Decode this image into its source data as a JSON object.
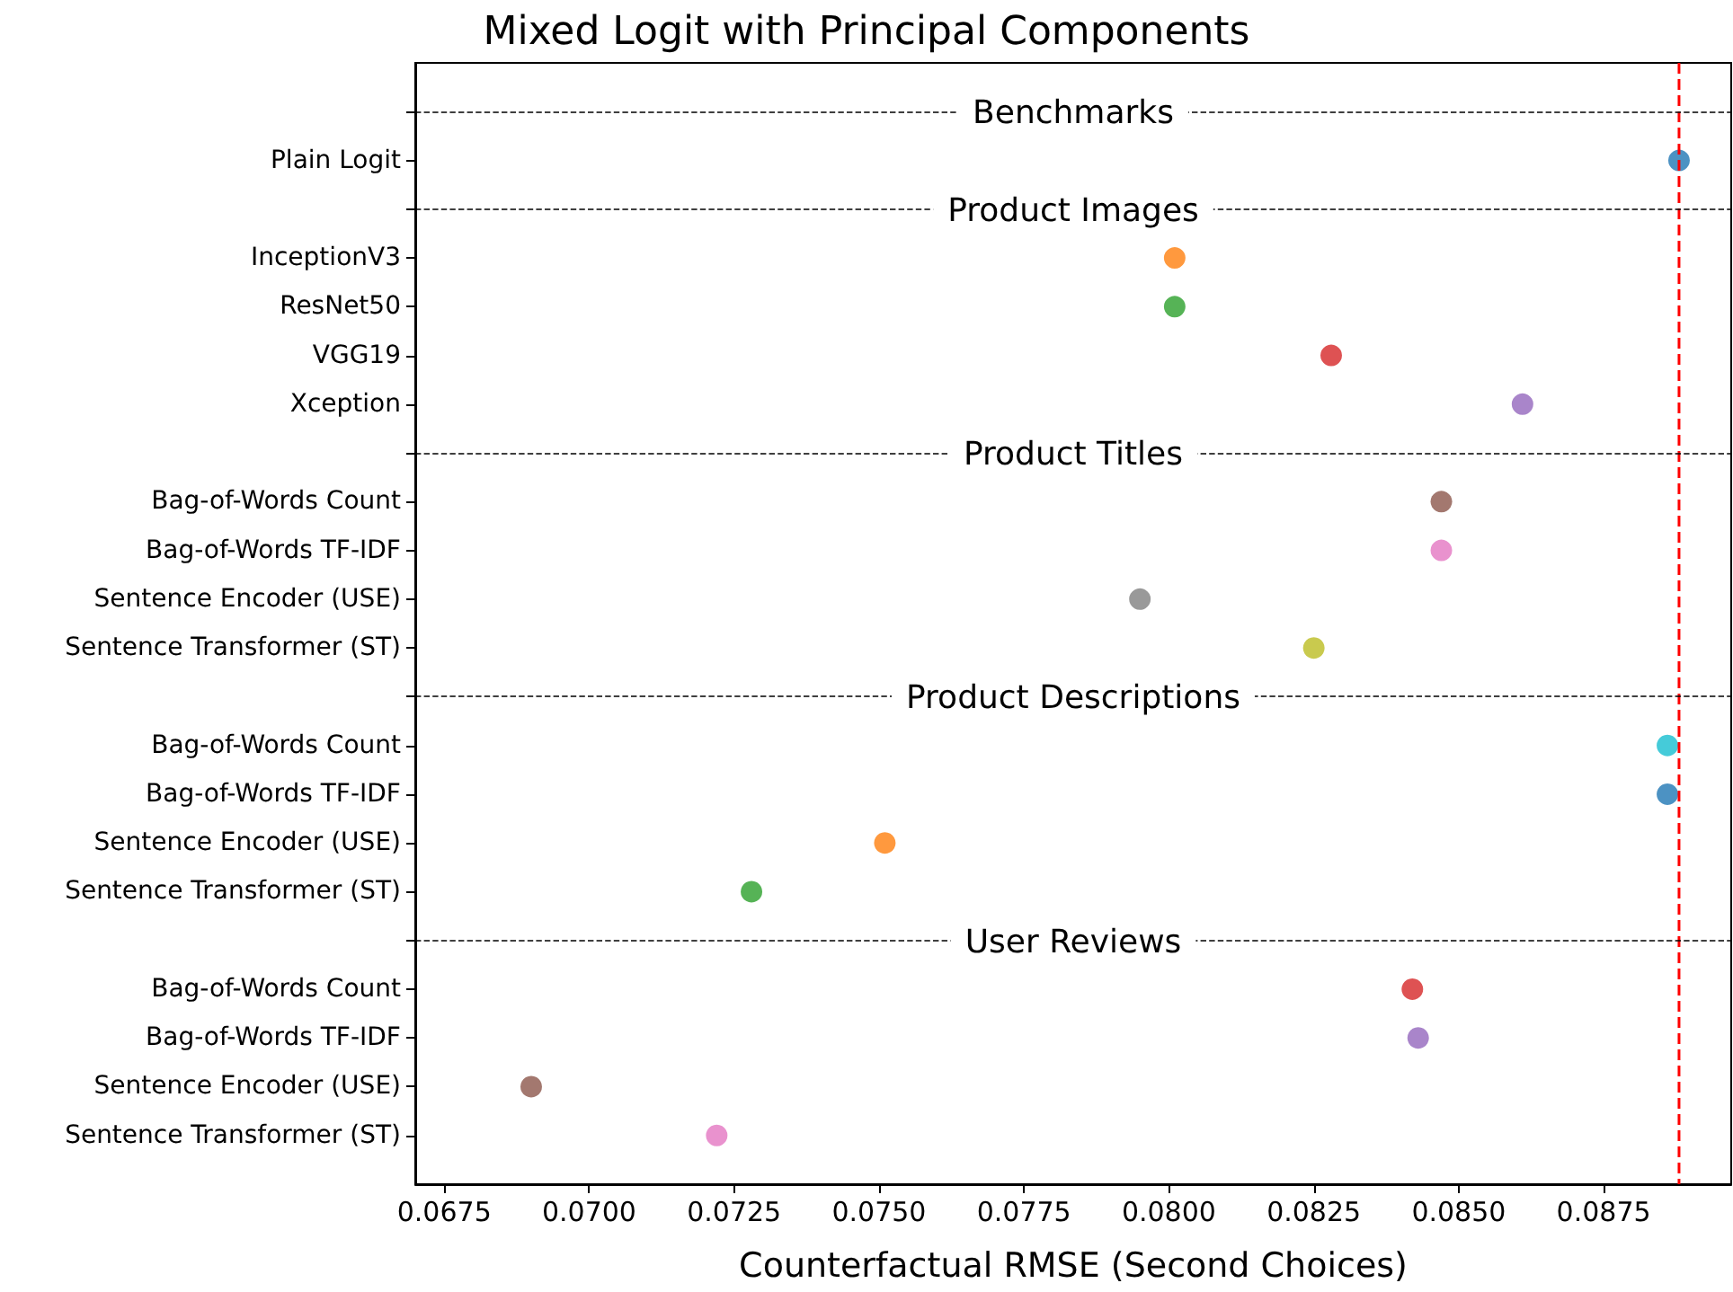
{
  "chart_data": {
    "type": "scatter",
    "title": "Mixed Logit with Principal Components",
    "xlabel": "Counterfactual RMSE (Second Choices)",
    "categories": [
      null,
      "Plain Logit",
      null,
      "InceptionV3",
      "ResNet50",
      "VGG19",
      "Xception",
      null,
      "Bag-of-Words Count",
      "Bag-of-Words TF-IDF",
      "Sentence Encoder (USE)",
      "Sentence Transformer (ST)",
      null,
      "Bag-of-Words Count",
      "Bag-of-Words TF-IDF",
      "Sentence Encoder (USE)",
      "Sentence Transformer (ST)",
      null,
      "Bag-of-Words Count",
      "Bag-of-Words TF-IDF",
      "Sentence Encoder (USE)",
      "Sentence Transformer (ST)"
    ],
    "values": [
      null,
      0.0888,
      null,
      0.0801,
      0.0801,
      0.0828,
      0.0861,
      null,
      0.0847,
      0.0847,
      0.0795,
      0.0825,
      null,
      0.0886,
      0.0886,
      0.0751,
      0.0728,
      null,
      0.0842,
      0.0843,
      0.069,
      0.0722
    ],
    "colors": [
      null,
      "#1f77b4",
      null,
      "#ff7f0e",
      "#2ca02c",
      "#d62728",
      "#9467bd",
      null,
      "#8c564b",
      "#e377c2",
      "#7f7f7f",
      "#bcbd22",
      null,
      "#17becf",
      "#1f77b4",
      "#ff7f0e",
      "#2ca02c",
      null,
      "#d62728",
      "#9467bd",
      "#8c564b",
      "#e377c2"
    ],
    "marker": "circle",
    "orientation": "horizontal",
    "xlim": [
      0.067,
      0.0897
    ],
    "xticks": [
      {
        "value": 0.0675,
        "label": "0.0675"
      },
      {
        "value": 0.07,
        "label": "0.0700"
      },
      {
        "value": 0.0725,
        "label": "0.0725"
      },
      {
        "value": 0.075,
        "label": "0.0750"
      },
      {
        "value": 0.0775,
        "label": "0.0775"
      },
      {
        "value": 0.08,
        "label": "0.0800"
      },
      {
        "value": 0.0825,
        "label": "0.0825"
      },
      {
        "value": 0.085,
        "label": "0.0850"
      },
      {
        "value": 0.0875,
        "label": "0.0875"
      }
    ],
    "annotations": [
      "Benchmarks",
      "Product Images",
      "Product Titles",
      "Product Descriptions",
      "User Reviews"
    ],
    "ref_lines": [
      {
        "axis": "x",
        "value": 0.0888,
        "color": "#ff0000",
        "line_style": "dashed"
      }
    ]
  }
}
